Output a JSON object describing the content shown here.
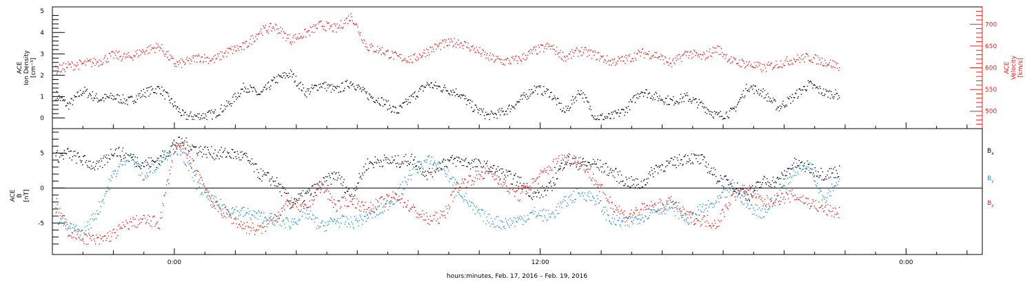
{
  "xlabel": "hours:minutes, Feb. 17, 2016 – Feb. 19, 2016",
  "x_ticks": [
    {
      "h": 0,
      "label": "0:00"
    },
    {
      "h": 12,
      "label": "12:00"
    },
    {
      "h": 24,
      "label": "0:00"
    }
  ],
  "x_range_hours": [
    -4,
    26.5
  ],
  "colors": {
    "density": "#000000",
    "velocity": "#e0201b",
    "bx": "#000000",
    "by": "#1f8ad6",
    "bz": "#e0201b"
  },
  "chart_data": [
    {
      "type": "scatter",
      "panel": "top",
      "ylabel_left": [
        "ACE",
        "Ion Density",
        "[cm⁻³]"
      ],
      "ylabel_right": [
        "ACE",
        "Velocity",
        "[km/s]"
      ],
      "ylim": [
        -0.5,
        5.2
      ],
      "ylim_right": [
        460,
        740
      ],
      "yticks": [
        0,
        1,
        2,
        3,
        4,
        5
      ],
      "yticks_right": [
        500,
        550,
        600,
        650,
        700
      ],
      "series": [
        {
          "key": "density",
          "x": [
            -3.9,
            -3.5,
            -3.0,
            -2.5,
            -2.0,
            -1.5,
            -1.0,
            -0.5,
            0.0,
            0.3,
            0.8,
            1.3,
            1.8,
            2.3,
            2.8,
            3.3,
            3.8,
            4.3,
            4.8,
            5.3,
            5.8,
            6.3,
            6.8,
            7.3,
            7.8,
            8.3,
            8.8,
            9.3,
            9.8,
            10.3,
            10.8,
            11.3,
            11.8,
            12.3,
            12.8,
            13.3,
            13.8,
            14.3,
            14.8,
            15.3,
            15.8,
            16.3,
            16.8,
            17.3,
            17.8,
            18.3,
            18.8,
            19.3,
            19.8,
            20.3,
            20.8,
            21.3,
            21.8
          ],
          "y": [
            1.1,
            0.6,
            1.3,
            0.9,
            1.0,
            0.8,
            1.2,
            1.4,
            0.6,
            0.1,
            0.1,
            0.2,
            0.7,
            1.5,
            1.1,
            1.8,
            2.1,
            1.2,
            1.6,
            1.3,
            1.7,
            1.1,
            0.8,
            0.3,
            1.0,
            1.6,
            1.4,
            1.2,
            0.5,
            0.1,
            0.3,
            0.8,
            1.4,
            1.2,
            0.3,
            1.3,
            0.05,
            0.05,
            0.4,
            1.3,
            1.0,
            0.8,
            1.0,
            0.6,
            0.1,
            0.3,
            1.5,
            1.2,
            0.5,
            1.0,
            1.6,
            1.2,
            1.1
          ]
        },
        {
          "key": "velocity",
          "x": [
            -3.9,
            -3.5,
            -3.0,
            -2.5,
            -2.0,
            -1.5,
            -1.0,
            -0.5,
            0.0,
            0.3,
            0.8,
            1.3,
            1.8,
            2.3,
            2.8,
            3.3,
            3.8,
            4.3,
            4.8,
            5.3,
            5.8,
            6.3,
            6.8,
            7.3,
            7.8,
            8.3,
            8.8,
            9.3,
            9.8,
            10.3,
            10.8,
            11.3,
            11.8,
            12.3,
            12.8,
            13.3,
            13.8,
            14.3,
            14.8,
            15.3,
            15.8,
            16.3,
            16.8,
            17.3,
            17.8,
            18.3,
            18.8,
            19.3,
            19.8,
            20.3,
            20.8,
            21.3,
            21.8
          ],
          "y": [
            595,
            605,
            610,
            615,
            630,
            625,
            640,
            650,
            610,
            612,
            625,
            620,
            640,
            650,
            685,
            695,
            665,
            680,
            700,
            690,
            720,
            650,
            640,
            625,
            620,
            640,
            655,
            660,
            645,
            625,
            615,
            620,
            640,
            650,
            625,
            640,
            630,
            615,
            620,
            635,
            630,
            610,
            635,
            625,
            645,
            615,
            610,
            600,
            610,
            620,
            625,
            615,
            605
          ]
        }
      ]
    },
    {
      "type": "scatter",
      "panel": "bottom",
      "ylabel_left": [
        "ACE",
        "B",
        "[nT]"
      ],
      "ylim": [
        -9.5,
        8.5
      ],
      "yticks": [
        -5,
        0,
        5
      ],
      "legend": [
        {
          "key": "bx",
          "label": "B",
          "sub": "x"
        },
        {
          "key": "by",
          "label": "B",
          "sub": "y"
        },
        {
          "key": "bz",
          "label": "B",
          "sub": "z"
        }
      ],
      "series": [
        {
          "key": "bx",
          "x": [
            -3.9,
            -3.5,
            -3.0,
            -2.5,
            -2.0,
            -1.5,
            -1.0,
            -0.5,
            0.0,
            0.3,
            0.8,
            1.3,
            1.8,
            2.3,
            2.8,
            3.3,
            3.8,
            4.3,
            4.8,
            5.3,
            5.8,
            6.3,
            6.8,
            7.3,
            7.8,
            8.3,
            8.8,
            9.3,
            9.8,
            10.3,
            10.8,
            11.3,
            11.8,
            12.3,
            12.8,
            13.3,
            13.8,
            14.3,
            14.8,
            15.3,
            15.8,
            16.3,
            16.8,
            17.3,
            17.8,
            18.3,
            18.8,
            19.3,
            19.8,
            20.3,
            20.8,
            21.3,
            21.8
          ],
          "y": [
            4.5,
            5.0,
            4.0,
            3.0,
            5.5,
            4.5,
            3.5,
            4.0,
            6.5,
            6.5,
            5.5,
            5.0,
            5.0,
            4.5,
            2.0,
            1.0,
            -2.0,
            -1.0,
            0.5,
            2.0,
            -1.0,
            3.5,
            4.0,
            3.8,
            4.2,
            2.0,
            3.8,
            4.0,
            3.5,
            3.0,
            2.0,
            1.0,
            -1.0,
            0.0,
            4.0,
            3.5,
            3.5,
            2.5,
            1.0,
            0.5,
            3.0,
            3.5,
            4.5,
            4.0,
            1.5,
            0.5,
            -1.0,
            1.0,
            1.0,
            3.5,
            3.0,
            2.0,
            2.5
          ]
        },
        {
          "key": "by",
          "x": [
            -3.9,
            -3.5,
            -3.0,
            -2.5,
            -2.0,
            -1.5,
            -1.0,
            -0.5,
            0.0,
            0.3,
            0.8,
            1.3,
            1.8,
            2.3,
            2.8,
            3.3,
            3.8,
            4.3,
            4.8,
            5.3,
            5.8,
            6.3,
            6.8,
            7.3,
            7.8,
            8.3,
            8.8,
            9.3,
            9.8,
            10.3,
            10.8,
            11.3,
            11.8,
            12.3,
            12.8,
            13.3,
            13.8,
            14.3,
            14.8,
            15.3,
            15.8,
            16.3,
            16.8,
            17.3,
            17.8,
            18.3,
            18.8,
            19.3,
            19.8,
            20.3,
            20.8,
            21.3,
            21.8
          ],
          "y": [
            -4.0,
            -5.5,
            -6.5,
            -3.0,
            2.0,
            5.0,
            1.5,
            4.0,
            6.0,
            4.5,
            0.0,
            -2.0,
            -3.0,
            -3.5,
            -4.0,
            -4.5,
            -5.0,
            -3.5,
            -5.5,
            -4.5,
            -5.0,
            -4.0,
            -3.0,
            -1.0,
            2.5,
            4.0,
            3.0,
            0.0,
            -3.0,
            -4.5,
            -5.0,
            -4.5,
            -3.5,
            -4.0,
            -2.0,
            -0.5,
            -1.5,
            -4.5,
            -5.0,
            -4.0,
            -3.0,
            -2.5,
            -4.5,
            -3.0,
            -2.0,
            0.5,
            -2.5,
            -3.5,
            -1.0,
            2.5,
            3.5,
            -1.5,
            1.5
          ]
        },
        {
          "key": "bz",
          "x": [
            -3.9,
            -3.5,
            -3.0,
            -2.5,
            -2.0,
            -1.5,
            -1.0,
            -0.5,
            0.0,
            0.3,
            0.8,
            1.3,
            1.8,
            2.3,
            2.8,
            3.3,
            3.8,
            4.3,
            4.8,
            5.3,
            5.8,
            6.3,
            6.8,
            7.3,
            7.8,
            8.3,
            8.8,
            9.3,
            9.8,
            10.3,
            10.8,
            11.3,
            11.8,
            12.3,
            12.8,
            13.3,
            13.8,
            14.3,
            14.8,
            15.3,
            15.8,
            16.3,
            16.8,
            17.3,
            17.8,
            18.3,
            18.8,
            19.3,
            19.8,
            20.3,
            20.8,
            21.3,
            21.8
          ],
          "y": [
            -2.0,
            -6.0,
            -7.0,
            -7.5,
            -6.5,
            -5.0,
            -4.5,
            -5.0,
            6.0,
            5.5,
            2.0,
            -2.5,
            -4.0,
            -5.5,
            -6.0,
            -4.0,
            -2.0,
            -3.0,
            0.5,
            -2.5,
            -1.5,
            -3.0,
            -2.0,
            -1.0,
            -3.0,
            -4.5,
            -4.0,
            0.5,
            1.5,
            2.5,
            0.5,
            -1.0,
            1.0,
            3.0,
            4.5,
            4.0,
            1.0,
            -2.0,
            -4.0,
            -3.0,
            -2.5,
            -2.0,
            -4.0,
            -4.5,
            -5.0,
            -1.0,
            0.0,
            -2.0,
            -1.5,
            -1.0,
            -2.0,
            -3.0,
            -3.5
          ]
        }
      ]
    }
  ]
}
